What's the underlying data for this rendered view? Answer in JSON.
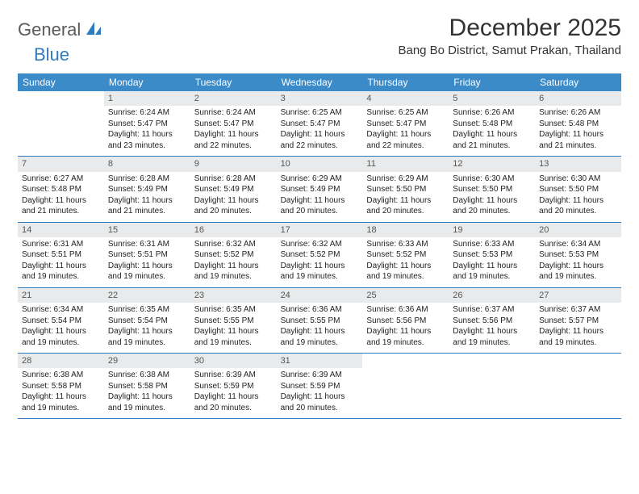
{
  "brand": {
    "part1": "General",
    "part2": "Blue"
  },
  "title": "December 2025",
  "location": "Bang Bo District, Samut Prakan, Thailand",
  "weekdays": [
    "Sunday",
    "Monday",
    "Tuesday",
    "Wednesday",
    "Thursday",
    "Friday",
    "Saturday"
  ],
  "colors": {
    "header_bg": "#3b8bc9",
    "daynum_bg": "#e9eaeb",
    "rule": "#2f7bbf",
    "brand_blue": "#2f7bbf",
    "brand_gray": "#5a5a5a"
  },
  "weeks": [
    [
      {
        "n": "",
        "sr": "",
        "ss": "",
        "dl": ""
      },
      {
        "n": "1",
        "sr": "Sunrise: 6:24 AM",
        "ss": "Sunset: 5:47 PM",
        "dl": "Daylight: 11 hours and 23 minutes."
      },
      {
        "n": "2",
        "sr": "Sunrise: 6:24 AM",
        "ss": "Sunset: 5:47 PM",
        "dl": "Daylight: 11 hours and 22 minutes."
      },
      {
        "n": "3",
        "sr": "Sunrise: 6:25 AM",
        "ss": "Sunset: 5:47 PM",
        "dl": "Daylight: 11 hours and 22 minutes."
      },
      {
        "n": "4",
        "sr": "Sunrise: 6:25 AM",
        "ss": "Sunset: 5:47 PM",
        "dl": "Daylight: 11 hours and 22 minutes."
      },
      {
        "n": "5",
        "sr": "Sunrise: 6:26 AM",
        "ss": "Sunset: 5:48 PM",
        "dl": "Daylight: 11 hours and 21 minutes."
      },
      {
        "n": "6",
        "sr": "Sunrise: 6:26 AM",
        "ss": "Sunset: 5:48 PM",
        "dl": "Daylight: 11 hours and 21 minutes."
      }
    ],
    [
      {
        "n": "7",
        "sr": "Sunrise: 6:27 AM",
        "ss": "Sunset: 5:48 PM",
        "dl": "Daylight: 11 hours and 21 minutes."
      },
      {
        "n": "8",
        "sr": "Sunrise: 6:28 AM",
        "ss": "Sunset: 5:49 PM",
        "dl": "Daylight: 11 hours and 21 minutes."
      },
      {
        "n": "9",
        "sr": "Sunrise: 6:28 AM",
        "ss": "Sunset: 5:49 PM",
        "dl": "Daylight: 11 hours and 20 minutes."
      },
      {
        "n": "10",
        "sr": "Sunrise: 6:29 AM",
        "ss": "Sunset: 5:49 PM",
        "dl": "Daylight: 11 hours and 20 minutes."
      },
      {
        "n": "11",
        "sr": "Sunrise: 6:29 AM",
        "ss": "Sunset: 5:50 PM",
        "dl": "Daylight: 11 hours and 20 minutes."
      },
      {
        "n": "12",
        "sr": "Sunrise: 6:30 AM",
        "ss": "Sunset: 5:50 PM",
        "dl": "Daylight: 11 hours and 20 minutes."
      },
      {
        "n": "13",
        "sr": "Sunrise: 6:30 AM",
        "ss": "Sunset: 5:50 PM",
        "dl": "Daylight: 11 hours and 20 minutes."
      }
    ],
    [
      {
        "n": "14",
        "sr": "Sunrise: 6:31 AM",
        "ss": "Sunset: 5:51 PM",
        "dl": "Daylight: 11 hours and 19 minutes."
      },
      {
        "n": "15",
        "sr": "Sunrise: 6:31 AM",
        "ss": "Sunset: 5:51 PM",
        "dl": "Daylight: 11 hours and 19 minutes."
      },
      {
        "n": "16",
        "sr": "Sunrise: 6:32 AM",
        "ss": "Sunset: 5:52 PM",
        "dl": "Daylight: 11 hours and 19 minutes."
      },
      {
        "n": "17",
        "sr": "Sunrise: 6:32 AM",
        "ss": "Sunset: 5:52 PM",
        "dl": "Daylight: 11 hours and 19 minutes."
      },
      {
        "n": "18",
        "sr": "Sunrise: 6:33 AM",
        "ss": "Sunset: 5:52 PM",
        "dl": "Daylight: 11 hours and 19 minutes."
      },
      {
        "n": "19",
        "sr": "Sunrise: 6:33 AM",
        "ss": "Sunset: 5:53 PM",
        "dl": "Daylight: 11 hours and 19 minutes."
      },
      {
        "n": "20",
        "sr": "Sunrise: 6:34 AM",
        "ss": "Sunset: 5:53 PM",
        "dl": "Daylight: 11 hours and 19 minutes."
      }
    ],
    [
      {
        "n": "21",
        "sr": "Sunrise: 6:34 AM",
        "ss": "Sunset: 5:54 PM",
        "dl": "Daylight: 11 hours and 19 minutes."
      },
      {
        "n": "22",
        "sr": "Sunrise: 6:35 AM",
        "ss": "Sunset: 5:54 PM",
        "dl": "Daylight: 11 hours and 19 minutes."
      },
      {
        "n": "23",
        "sr": "Sunrise: 6:35 AM",
        "ss": "Sunset: 5:55 PM",
        "dl": "Daylight: 11 hours and 19 minutes."
      },
      {
        "n": "24",
        "sr": "Sunrise: 6:36 AM",
        "ss": "Sunset: 5:55 PM",
        "dl": "Daylight: 11 hours and 19 minutes."
      },
      {
        "n": "25",
        "sr": "Sunrise: 6:36 AM",
        "ss": "Sunset: 5:56 PM",
        "dl": "Daylight: 11 hours and 19 minutes."
      },
      {
        "n": "26",
        "sr": "Sunrise: 6:37 AM",
        "ss": "Sunset: 5:56 PM",
        "dl": "Daylight: 11 hours and 19 minutes."
      },
      {
        "n": "27",
        "sr": "Sunrise: 6:37 AM",
        "ss": "Sunset: 5:57 PM",
        "dl": "Daylight: 11 hours and 19 minutes."
      }
    ],
    [
      {
        "n": "28",
        "sr": "Sunrise: 6:38 AM",
        "ss": "Sunset: 5:58 PM",
        "dl": "Daylight: 11 hours and 19 minutes."
      },
      {
        "n": "29",
        "sr": "Sunrise: 6:38 AM",
        "ss": "Sunset: 5:58 PM",
        "dl": "Daylight: 11 hours and 19 minutes."
      },
      {
        "n": "30",
        "sr": "Sunrise: 6:39 AM",
        "ss": "Sunset: 5:59 PM",
        "dl": "Daylight: 11 hours and 20 minutes."
      },
      {
        "n": "31",
        "sr": "Sunrise: 6:39 AM",
        "ss": "Sunset: 5:59 PM",
        "dl": "Daylight: 11 hours and 20 minutes."
      },
      {
        "n": "",
        "sr": "",
        "ss": "",
        "dl": ""
      },
      {
        "n": "",
        "sr": "",
        "ss": "",
        "dl": ""
      },
      {
        "n": "",
        "sr": "",
        "ss": "",
        "dl": ""
      }
    ]
  ]
}
